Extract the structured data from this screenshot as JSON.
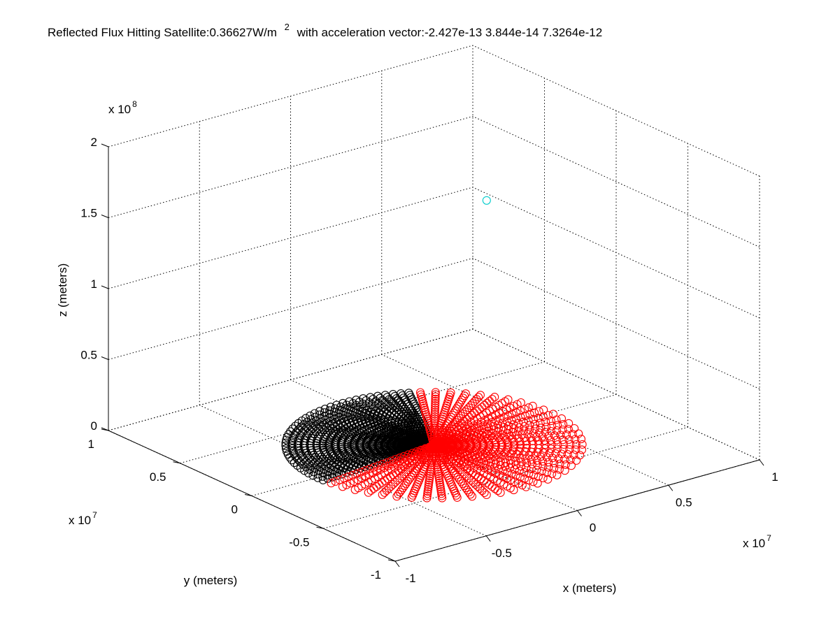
{
  "chart_data": {
    "type": "scatter",
    "view": "3d",
    "title_parts": {
      "flux_prefix": "Reflected Flux Hitting Satellite:0.36627W/m",
      "flux_exponent": "2",
      "accel_text": "with acceleration vector:-2.427e-13   3.844e-14  7.3264e-12"
    },
    "xlabel": "x (meters)",
    "ylabel": "y (meters)",
    "zlabel": "z (meters)",
    "x_multiplier": "x 10",
    "x_multiplier_exp": "7",
    "y_multiplier": "x 10",
    "y_multiplier_exp": "7",
    "z_multiplier": "x 10",
    "z_multiplier_exp": "8",
    "xlim": [
      -10000000.0,
      10000000.0
    ],
    "ylim": [
      -10000000.0,
      10000000.0
    ],
    "zlim": [
      0,
      200000000.0
    ],
    "x_ticks": [
      "-1",
      "-0.5",
      "0",
      "0.5",
      "1"
    ],
    "y_ticks": [
      "-1",
      "-0.5",
      "0",
      "0.5",
      "1"
    ],
    "z_ticks": [
      "0",
      "0.5",
      "1",
      "1.5",
      "2"
    ],
    "x_tick_values": [
      -10000000.0,
      -5000000.0,
      0,
      5000000.0,
      10000000.0
    ],
    "y_tick_values": [
      -10000000.0,
      -5000000.0,
      0,
      5000000.0,
      10000000.0
    ],
    "z_tick_values": [
      0,
      50000000.0,
      100000000.0,
      150000000.0,
      200000000.0
    ],
    "grid": true,
    "marker": "circle",
    "series": [
      {
        "color": "#000000",
        "description": "Earth surface points facing away from satellite (disc in z=0 plane)",
        "disc_radius": 6400000.0,
        "radial_lines": 40,
        "points_per_line": 24,
        "angle_range_deg": [
          60,
          185
        ]
      },
      {
        "color": "#ff0000",
        "description": "Earth surface points reflecting flux toward satellite (disc in z=0 plane)",
        "disc_radius": 6400000.0,
        "radial_lines": 40,
        "points_per_line": 24,
        "angle_range_deg": [
          185,
          420
        ]
      },
      {
        "color": "#00cccc",
        "description": "Satellite position",
        "points": [
          [
            1000000.0,
            -2400000.0,
            180000000.0
          ]
        ]
      }
    ]
  }
}
